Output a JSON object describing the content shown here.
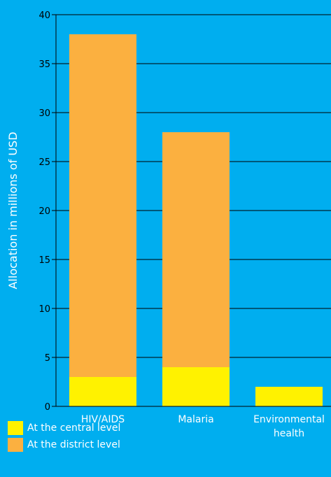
{
  "chart_data": {
    "type": "bar",
    "stacked": true,
    "categories": [
      "HIV/AIDS",
      "Malaria",
      "Environmental health"
    ],
    "category_lines": [
      [
        "HIV/AIDS"
      ],
      [
        "Malaria"
      ],
      [
        "Environmental",
        "health"
      ]
    ],
    "series": [
      {
        "name": "At the central level",
        "values": [
          3,
          4,
          2
        ],
        "color": "#fff200"
      },
      {
        "name": "At the district level",
        "values": [
          35,
          24,
          0
        ],
        "color": "#fbb040"
      }
    ],
    "ylabel": "Allocation in millions of USD",
    "xlabel": "",
    "title": "",
    "ylim": [
      0,
      40
    ],
    "yticks": [
      0,
      5,
      10,
      15,
      20,
      25,
      30,
      35,
      40
    ],
    "grid": "horizontal",
    "legend_position": "bottom-left",
    "background_color": "#00aeef",
    "axis_color": "#000000"
  }
}
